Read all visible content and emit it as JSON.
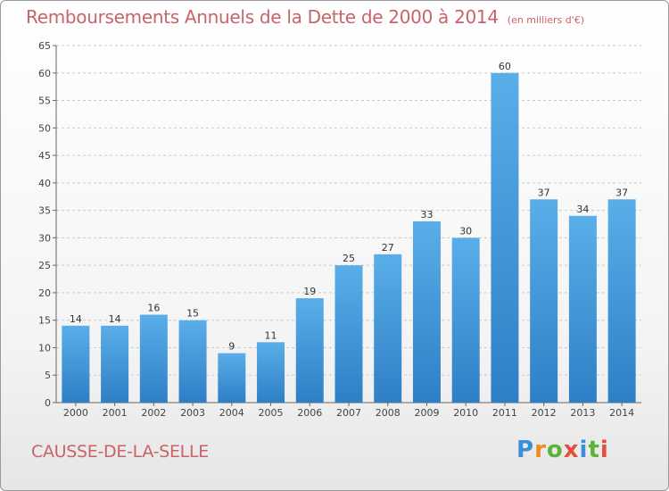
{
  "header": {
    "title": "Remboursements Annuels de la Dette de 2000 à 2014",
    "subtitle": "(en milliers d'€)"
  },
  "footer": {
    "commune": "CAUSSE-DE-LA-SELLE",
    "logo_text": "Proxiti"
  },
  "colors": {
    "title": "#c86469",
    "bar_light": "#5aaee8",
    "bar_dark": "#2e7fc6",
    "grid": "#c9c9c9"
  },
  "chart_data": {
    "type": "bar",
    "title": "Remboursements Annuels de la Dette de 2000 à 2014",
    "subtitle": "(en milliers d'€)",
    "xlabel": "",
    "ylabel": "",
    "categories": [
      "2000",
      "2001",
      "2002",
      "2003",
      "2004",
      "2005",
      "2006",
      "2007",
      "2008",
      "2009",
      "2010",
      "2011",
      "2012",
      "2013",
      "2014"
    ],
    "values": [
      14,
      14,
      16,
      15,
      9,
      11,
      19,
      25,
      27,
      33,
      30,
      60,
      37,
      34,
      37
    ],
    "ylim": [
      0,
      65
    ],
    "yticks": [
      0,
      5,
      10,
      15,
      20,
      25,
      30,
      35,
      40,
      45,
      50,
      55,
      60,
      65
    ],
    "grid": true,
    "data_labels": true
  }
}
